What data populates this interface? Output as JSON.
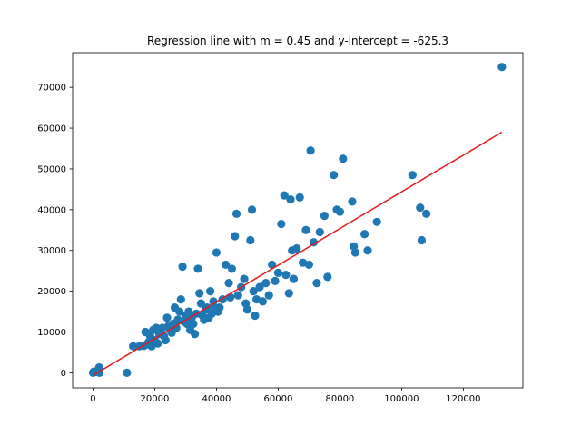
{
  "chart_data": {
    "type": "scatter",
    "title": "Regression line with m = 0.45 and y-intercept = -625.3",
    "xlabel": "",
    "ylabel": "",
    "xlim": [
      -6600,
      139300
    ],
    "ylim": [
      -3700,
      78500
    ],
    "x_ticks": [
      0,
      20000,
      40000,
      60000,
      80000,
      100000,
      120000
    ],
    "y_ticks": [
      0,
      10000,
      20000,
      30000,
      40000,
      50000,
      60000,
      70000
    ],
    "x_tick_labels": [
      "0",
      "20000",
      "40000",
      "60000",
      "80000",
      "100000",
      "120000"
    ],
    "y_tick_labels": [
      "0",
      "10000",
      "20000",
      "30000",
      "40000",
      "50000",
      "60000",
      "70000"
    ],
    "grid": false,
    "legend": "none",
    "colors": {
      "points": "#1f77b4",
      "line": "#e41a1c"
    },
    "regression_line": {
      "slope": 0.45,
      "intercept": -625.3,
      "x_range": [
        0,
        132500
      ]
    },
    "points": [
      [
        0,
        0
      ],
      [
        300,
        300
      ],
      [
        900,
        200
      ],
      [
        1500,
        600
      ],
      [
        2000,
        1300
      ],
      [
        2100,
        0
      ],
      [
        11000,
        0
      ],
      [
        13000,
        6500
      ],
      [
        15000,
        6500
      ],
      [
        16500,
        6600
      ],
      [
        17500,
        7000
      ],
      [
        17000,
        10000
      ],
      [
        18000,
        7500
      ],
      [
        18500,
        9000
      ],
      [
        19000,
        6500
      ],
      [
        19500,
        10500
      ],
      [
        20000,
        8000
      ],
      [
        20500,
        11000
      ],
      [
        21000,
        7200
      ],
      [
        21500,
        9500
      ],
      [
        22000,
        10000
      ],
      [
        22500,
        11000
      ],
      [
        23000,
        9000
      ],
      [
        23500,
        8000
      ],
      [
        24000,
        13500
      ],
      [
        24500,
        11500
      ],
      [
        25000,
        10500
      ],
      [
        25500,
        9800
      ],
      [
        26000,
        12000
      ],
      [
        26500,
        16000
      ],
      [
        27000,
        11000
      ],
      [
        27500,
        13000
      ],
      [
        28000,
        15000
      ],
      [
        28500,
        18000
      ],
      [
        29000,
        26000
      ],
      [
        29500,
        12500
      ],
      [
        30000,
        14000
      ],
      [
        30500,
        12000
      ],
      [
        31000,
        15000
      ],
      [
        31500,
        10500
      ],
      [
        32000,
        13500
      ],
      [
        32500,
        12000
      ],
      [
        33000,
        9500
      ],
      [
        33500,
        14500
      ],
      [
        34000,
        25500
      ],
      [
        34500,
        19500
      ],
      [
        35000,
        17000
      ],
      [
        35500,
        14000
      ],
      [
        36000,
        13000
      ],
      [
        36500,
        15500
      ],
      [
        37000,
        16000
      ],
      [
        37500,
        13500
      ],
      [
        38000,
        20000
      ],
      [
        38500,
        14500
      ],
      [
        39000,
        17500
      ],
      [
        39500,
        16000
      ],
      [
        40000,
        29500
      ],
      [
        40500,
        15000
      ],
      [
        41000,
        16000
      ],
      [
        42000,
        18000
      ],
      [
        43000,
        26500
      ],
      [
        44000,
        22000
      ],
      [
        44500,
        18500
      ],
      [
        45000,
        25500
      ],
      [
        46000,
        33500
      ],
      [
        46500,
        39000
      ],
      [
        47000,
        19000
      ],
      [
        48000,
        21000
      ],
      [
        49000,
        23000
      ],
      [
        49500,
        17000
      ],
      [
        50000,
        15500
      ],
      [
        51000,
        32500
      ],
      [
        51500,
        40000
      ],
      [
        52000,
        20000
      ],
      [
        52500,
        14000
      ],
      [
        53000,
        18000
      ],
      [
        54000,
        21000
      ],
      [
        55000,
        17500
      ],
      [
        56000,
        22000
      ],
      [
        57000,
        19000
      ],
      [
        58000,
        26500
      ],
      [
        59000,
        22500
      ],
      [
        60000,
        24500
      ],
      [
        61000,
        36500
      ],
      [
        62000,
        43500
      ],
      [
        62500,
        24000
      ],
      [
        63500,
        19500
      ],
      [
        64000,
        42500
      ],
      [
        64500,
        30000
      ],
      [
        65000,
        23000
      ],
      [
        66000,
        30500
      ],
      [
        67000,
        43000
      ],
      [
        68000,
        27000
      ],
      [
        69000,
        35000
      ],
      [
        70000,
        26500
      ],
      [
        70500,
        54500
      ],
      [
        71500,
        32000
      ],
      [
        72500,
        22000
      ],
      [
        73500,
        34500
      ],
      [
        75000,
        38500
      ],
      [
        76000,
        23500
      ],
      [
        78000,
        48500
      ],
      [
        79000,
        40000
      ],
      [
        80000,
        39500
      ],
      [
        81000,
        52500
      ],
      [
        84000,
        42000
      ],
      [
        84500,
        31000
      ],
      [
        85000,
        29500
      ],
      [
        88000,
        34000
      ],
      [
        89000,
        30000
      ],
      [
        92000,
        37000
      ],
      [
        103500,
        48500
      ],
      [
        106000,
        40500
      ],
      [
        106500,
        32500
      ],
      [
        108000,
        39000
      ],
      [
        132500,
        75000
      ]
    ]
  }
}
